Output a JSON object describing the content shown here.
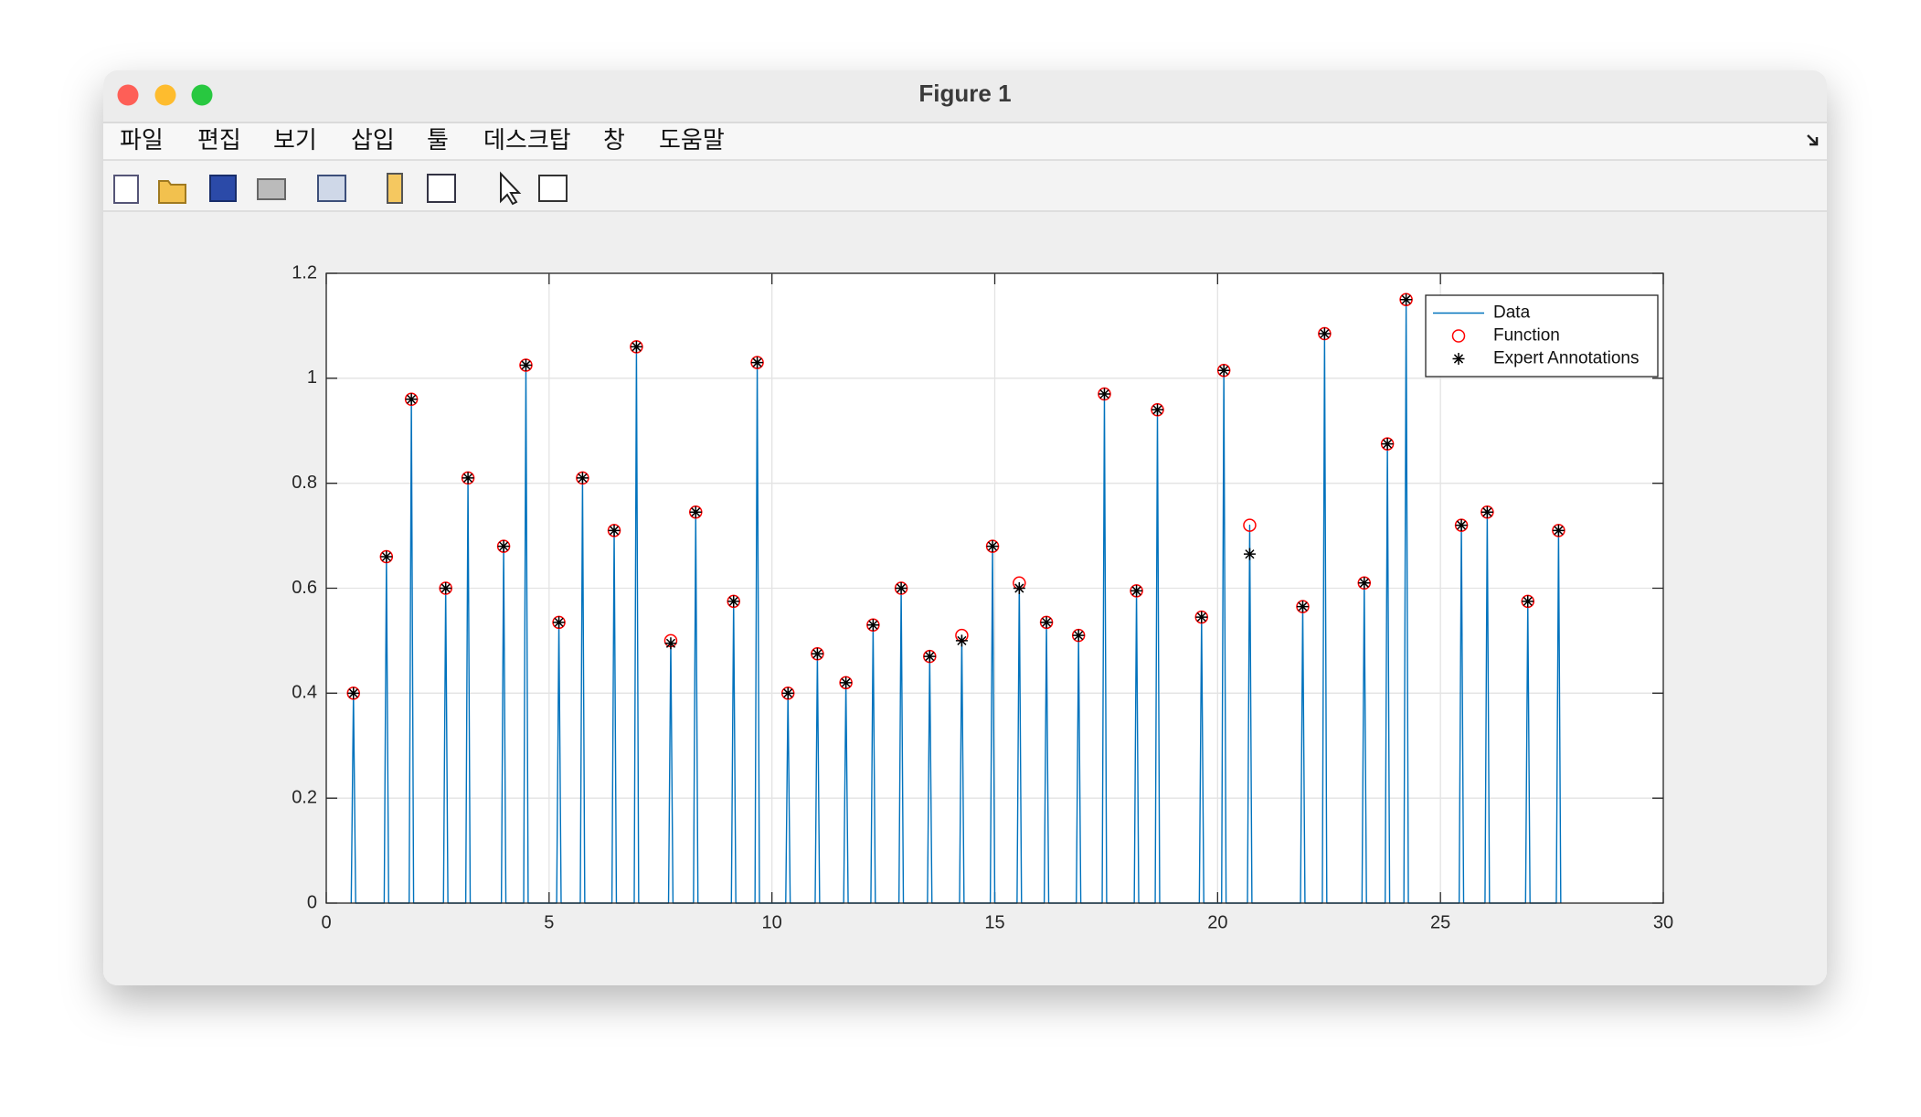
{
  "window": {
    "title": "Figure 1",
    "menu": [
      "파일",
      "편집",
      "보기",
      "삽입",
      "툴",
      "데스크탑",
      "창",
      "도움말"
    ]
  },
  "chart_data": {
    "type": "line",
    "xlim": [
      0,
      30
    ],
    "xticks": [
      0,
      5,
      10,
      15,
      20,
      25,
      30
    ],
    "ylim": [
      0,
      1.2
    ],
    "yticks": [
      0,
      0.2,
      0.4,
      0.6,
      0.8,
      1,
      1.2
    ],
    "grid": true,
    "legend": "upper right",
    "series": [
      {
        "name": "Data",
        "color": "#0072bd",
        "marker": "none",
        "x": [
          0.56,
          0.61,
          0.66,
          1.3,
          1.35,
          1.4,
          1.86,
          1.91,
          1.96,
          2.63,
          2.68,
          2.73,
          3.13,
          3.18,
          3.23,
          3.93,
          3.98,
          4.03,
          4.43,
          4.48,
          4.53,
          5.17,
          5.22,
          5.27,
          5.7,
          5.75,
          5.8,
          6.41,
          6.46,
          6.51,
          6.91,
          6.96,
          7.01,
          7.68,
          7.73,
          7.78,
          8.24,
          8.29,
          8.34,
          9.09,
          9.14,
          9.19,
          9.62,
          9.67,
          9.72,
          10.31,
          10.36,
          10.41,
          10.97,
          11.02,
          11.07,
          11.61,
          11.66,
          11.71,
          12.22,
          12.27,
          12.32,
          12.85,
          12.9,
          12.95,
          13.49,
          13.54,
          13.59,
          14.21,
          14.26,
          14.31,
          14.9,
          14.95,
          15.0,
          15.5,
          15.55,
          15.6,
          16.11,
          16.16,
          16.21,
          16.83,
          16.88,
          16.93,
          17.41,
          17.46,
          17.51,
          18.13,
          18.18,
          18.23,
          18.6,
          18.65,
          18.7,
          19.59,
          19.64,
          19.69,
          20.09,
          20.14,
          20.19,
          20.67,
          20.72,
          20.77,
          21.86,
          21.91,
          21.96,
          22.35,
          22.4,
          22.45,
          23.24,
          23.29,
          23.34,
          23.76,
          23.81,
          23.86,
          24.18,
          24.23,
          24.28,
          25.42,
          25.47,
          25.52,
          26.0,
          26.05,
          26.1,
          26.91,
          26.96,
          27.01,
          27.6,
          27.65,
          27.7
        ],
        "values": [
          0,
          0.4,
          0,
          0,
          0.66,
          0,
          0,
          0.96,
          0,
          0,
          0.6,
          0,
          0,
          0.81,
          0,
          0,
          0.68,
          0,
          0,
          1.025,
          0,
          0,
          0.535,
          0,
          0,
          0.81,
          0,
          0,
          0.71,
          0,
          0,
          1.06,
          0,
          0,
          0.5,
          0,
          0,
          0.745,
          0,
          0,
          0.575,
          0,
          0,
          1.03,
          0,
          0,
          0.4,
          0,
          0,
          0.475,
          0,
          0,
          0.42,
          0,
          0,
          0.53,
          0,
          0,
          0.6,
          0,
          0,
          0.47,
          0,
          0,
          0.51,
          0,
          0,
          0.68,
          0,
          0,
          0.61,
          0,
          0,
          0.535,
          0,
          0,
          0.51,
          0,
          0,
          0.97,
          0,
          0,
          0.595,
          0,
          0,
          0.94,
          0,
          0,
          0.545,
          0,
          0,
          1.015,
          0,
          0,
          0.72,
          0,
          0,
          0.565,
          0,
          0,
          1.085,
          0,
          0,
          0.61,
          0,
          0,
          0.875,
          0,
          0,
          1.15,
          0,
          0,
          0.72,
          0,
          0,
          0.745,
          0,
          0,
          0.575,
          0,
          0,
          0.71,
          0
        ]
      },
      {
        "name": "Function",
        "color": "#ff0000",
        "marker": "o",
        "x": [
          0.61,
          1.35,
          1.91,
          2.68,
          3.18,
          3.98,
          4.48,
          5.22,
          5.75,
          6.46,
          6.96,
          7.73,
          8.29,
          9.14,
          9.67,
          10.36,
          11.02,
          11.66,
          12.27,
          12.9,
          13.54,
          14.26,
          14.95,
          15.55,
          16.16,
          16.88,
          17.46,
          18.18,
          18.65,
          19.64,
          20.14,
          20.72,
          21.91,
          22.4,
          23.29,
          23.81,
          24.23,
          25.47,
          26.05,
          26.96,
          27.65
        ],
        "values": [
          0.4,
          0.66,
          0.96,
          0.6,
          0.81,
          0.68,
          1.025,
          0.535,
          0.81,
          0.71,
          1.06,
          0.5,
          0.745,
          0.575,
          1.03,
          0.4,
          0.475,
          0.42,
          0.53,
          0.6,
          0.47,
          0.51,
          0.68,
          0.61,
          0.535,
          0.51,
          0.97,
          0.595,
          0.94,
          0.545,
          1.015,
          0.72,
          0.565,
          1.085,
          0.61,
          0.875,
          1.15,
          0.72,
          0.745,
          0.575,
          0.71
        ]
      },
      {
        "name": "Expert Annotations",
        "color": "#000000",
        "marker": "*",
        "x": [
          0.61,
          1.35,
          1.91,
          2.68,
          3.18,
          3.98,
          4.48,
          5.22,
          5.75,
          6.46,
          6.96,
          7.73,
          8.29,
          9.14,
          9.67,
          10.36,
          11.02,
          11.66,
          12.27,
          12.9,
          13.54,
          14.26,
          14.95,
          15.55,
          16.16,
          16.88,
          17.46,
          18.18,
          18.65,
          19.64,
          20.14,
          20.72,
          21.91,
          22.4,
          23.29,
          23.81,
          24.23,
          25.47,
          26.05,
          26.96,
          27.65
        ],
        "values": [
          0.4,
          0.66,
          0.96,
          0.6,
          0.81,
          0.68,
          1.025,
          0.535,
          0.81,
          0.71,
          1.06,
          0.495,
          0.745,
          0.575,
          1.03,
          0.4,
          0.475,
          0.42,
          0.53,
          0.6,
          0.47,
          0.5,
          0.68,
          0.6,
          0.535,
          0.51,
          0.97,
          0.595,
          0.94,
          0.545,
          1.015,
          0.665,
          0.565,
          1.085,
          0.61,
          0.875,
          1.15,
          0.72,
          0.745,
          0.575,
          0.71
        ]
      }
    ]
  }
}
